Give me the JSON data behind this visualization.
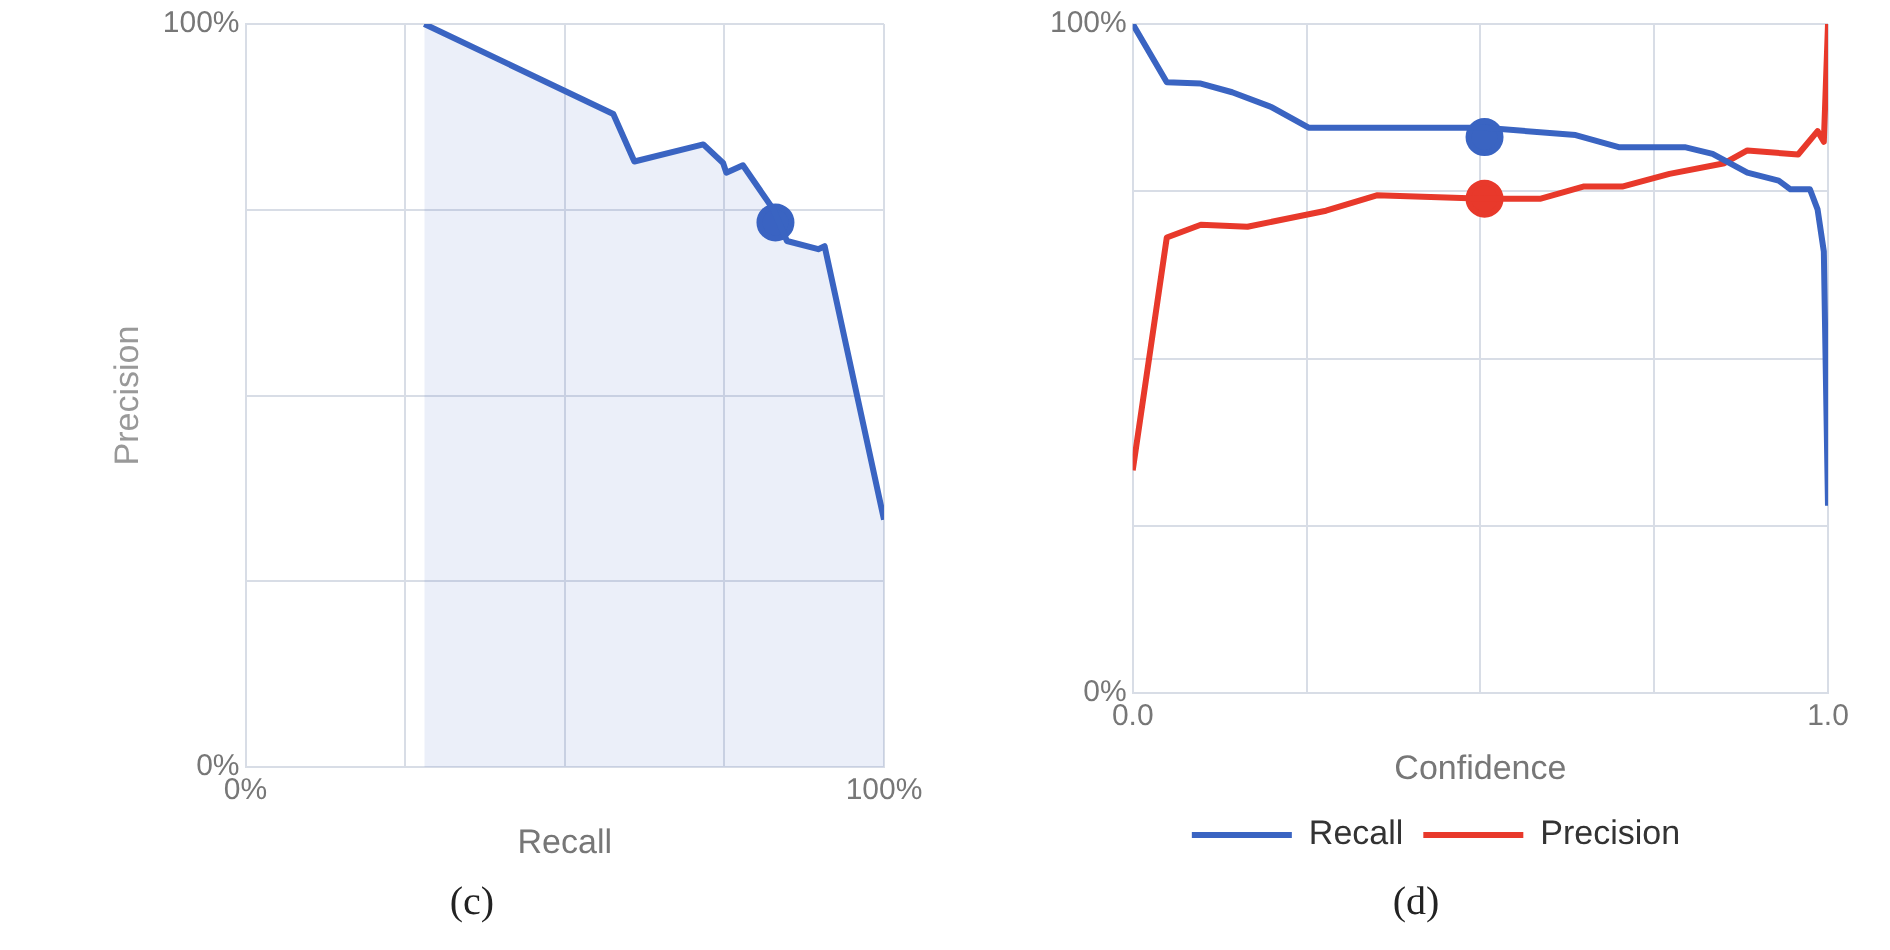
{
  "chart_data": [
    {
      "type": "area",
      "xlabel": "Recall",
      "ylabel": "Precision",
      "xlim": [
        0,
        100
      ],
      "ylim": [
        0,
        100
      ],
      "xticks": [
        {
          "value": 0,
          "label": "0%"
        },
        {
          "value": 25,
          "label": null
        },
        {
          "value": 50,
          "label": null
        },
        {
          "value": 75,
          "label": null
        },
        {
          "value": 100,
          "label": "100%"
        }
      ],
      "yticks": [
        {
          "value": 0,
          "label": "0%"
        },
        {
          "value": 25,
          "label": null
        },
        {
          "value": 50,
          "label": null
        },
        {
          "value": 75,
          "label": null
        },
        {
          "value": 100,
          "label": "100%"
        }
      ],
      "grid": true,
      "annotations": [
        "(c)"
      ],
      "series": [
        {
          "color": "#3a64c2",
          "x": [
            28,
            57.6,
            60.9,
            71.7,
            74.8,
            75.3,
            77.9,
            82.7,
            84.8,
            89.7,
            90.7,
            100
          ],
          "values": [
            100,
            87.9,
            81.5,
            83.8,
            81.3,
            80,
            81,
            75,
            70.8,
            69.7,
            70.1,
            33.3
          ]
        },
        {
          "type": "scatter",
          "marker": "circle",
          "color": "#3a64c2",
          "x": [
            83
          ],
          "values": [
            73.3
          ]
        }
      ]
    },
    {
      "type": "line",
      "xlabel": "Confidence",
      "xlim": [
        0,
        1
      ],
      "ylim": [
        0,
        100
      ],
      "xticks": [
        {
          "value": 0,
          "label": "0.0"
        },
        {
          "value": 0.25,
          "label": null
        },
        {
          "value": 0.5,
          "label": null
        },
        {
          "value": 0.75,
          "label": null
        },
        {
          "value": 1,
          "label": "1.0"
        }
      ],
      "yticks": [
        {
          "value": 0,
          "label": "0%"
        },
        {
          "value": 25,
          "label": null
        },
        {
          "value": 50,
          "label": null
        },
        {
          "value": 75,
          "label": null
        },
        {
          "value": 100,
          "label": "100%"
        }
      ],
      "grid": true,
      "legend": "bottom",
      "annotations": [
        "(d)"
      ],
      "series": [
        {
          "name": "Recall",
          "color": "#3a64c2",
          "x": [
            0,
            0.049,
            0.098,
            0.143,
            0.199,
            0.253,
            0.457,
            0.506,
            0.637,
            0.699,
            0.794,
            0.834,
            0.884,
            0.929,
            0.946,
            0.974,
            0.985,
            0.994,
            1
          ],
          "values": [
            100,
            91.3,
            91.1,
            89.8,
            87.6,
            84.5,
            84.5,
            84.5,
            83.4,
            81.6,
            81.6,
            80.6,
            77.8,
            76.6,
            75.3,
            75.3,
            72.3,
            66,
            28
          ]
        },
        {
          "name": "Precision",
          "color": "#e8392b",
          "x": [
            0,
            0.049,
            0.098,
            0.165,
            0.278,
            0.351,
            0.506,
            0.587,
            0.648,
            0.704,
            0.772,
            0.851,
            0.884,
            0.957,
            0.985,
            0.994,
            1
          ],
          "values": [
            33.3,
            68.1,
            70,
            69.7,
            72.1,
            74.4,
            73.9,
            73.9,
            75.7,
            75.7,
            77.6,
            79.2,
            81.1,
            80.5,
            84,
            82.4,
            100
          ]
        },
        {
          "type": "scatter",
          "marker": "circle",
          "color": "#3a64c2",
          "x": [
            0.506
          ],
          "values": [
            83.1
          ]
        },
        {
          "type": "scatter",
          "marker": "circle",
          "color": "#e8392b",
          "x": [
            0.506
          ],
          "values": [
            73.9
          ]
        }
      ]
    }
  ]
}
